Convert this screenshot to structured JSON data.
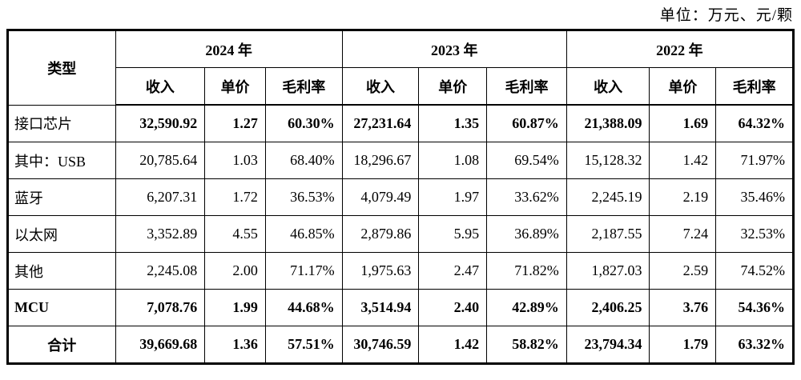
{
  "unit_note": "单位：万元、元/颗",
  "table": {
    "type_header": "类型",
    "year_groups": [
      {
        "label": "2024 年",
        "metrics": [
          "收入",
          "单价",
          "毛利率"
        ]
      },
      {
        "label": "2023 年",
        "metrics": [
          "收入",
          "单价",
          "毛利率"
        ]
      },
      {
        "label": "2022 年",
        "metrics": [
          "收入",
          "单价",
          "毛利率"
        ]
      }
    ],
    "rows": [
      {
        "label": "接口芯片",
        "label_bold": false,
        "label_center": false,
        "values_bold": true,
        "values": [
          "32,590.92",
          "1.27",
          "60.30%",
          "27,231.64",
          "1.35",
          "60.87%",
          "21,388.09",
          "1.69",
          "64.32%"
        ]
      },
      {
        "label": "其中：USB",
        "label_bold": false,
        "label_center": false,
        "values_bold": false,
        "values": [
          "20,785.64",
          "1.03",
          "68.40%",
          "18,296.67",
          "1.08",
          "69.54%",
          "15,128.32",
          "1.42",
          "71.97%"
        ]
      },
      {
        "label": "蓝牙",
        "label_bold": false,
        "label_center": false,
        "values_bold": false,
        "values": [
          "6,207.31",
          "1.72",
          "36.53%",
          "4,079.49",
          "1.97",
          "33.62%",
          "2,245.19",
          "2.19",
          "35.46%"
        ]
      },
      {
        "label": "以太网",
        "label_bold": false,
        "label_center": false,
        "values_bold": false,
        "values": [
          "3,352.89",
          "4.55",
          "46.85%",
          "2,879.86",
          "5.95",
          "36.89%",
          "2,187.55",
          "7.24",
          "32.53%"
        ]
      },
      {
        "label": "其他",
        "label_bold": false,
        "label_center": false,
        "values_bold": false,
        "values": [
          "2,245.08",
          "2.00",
          "71.17%",
          "1,975.63",
          "2.47",
          "71.82%",
          "1,827.03",
          "2.59",
          "74.52%"
        ]
      },
      {
        "label": "MCU",
        "label_bold": true,
        "label_center": false,
        "values_bold": true,
        "values": [
          "7,078.76",
          "1.99",
          "44.68%",
          "3,514.94",
          "2.40",
          "42.89%",
          "2,406.25",
          "3.76",
          "54.36%"
        ]
      },
      {
        "label": "合计",
        "label_bold": true,
        "label_center": true,
        "values_bold": true,
        "values": [
          "39,669.68",
          "1.36",
          "57.51%",
          "30,746.59",
          "1.42",
          "58.82%",
          "23,794.34",
          "1.79",
          "63.32%"
        ]
      }
    ]
  }
}
